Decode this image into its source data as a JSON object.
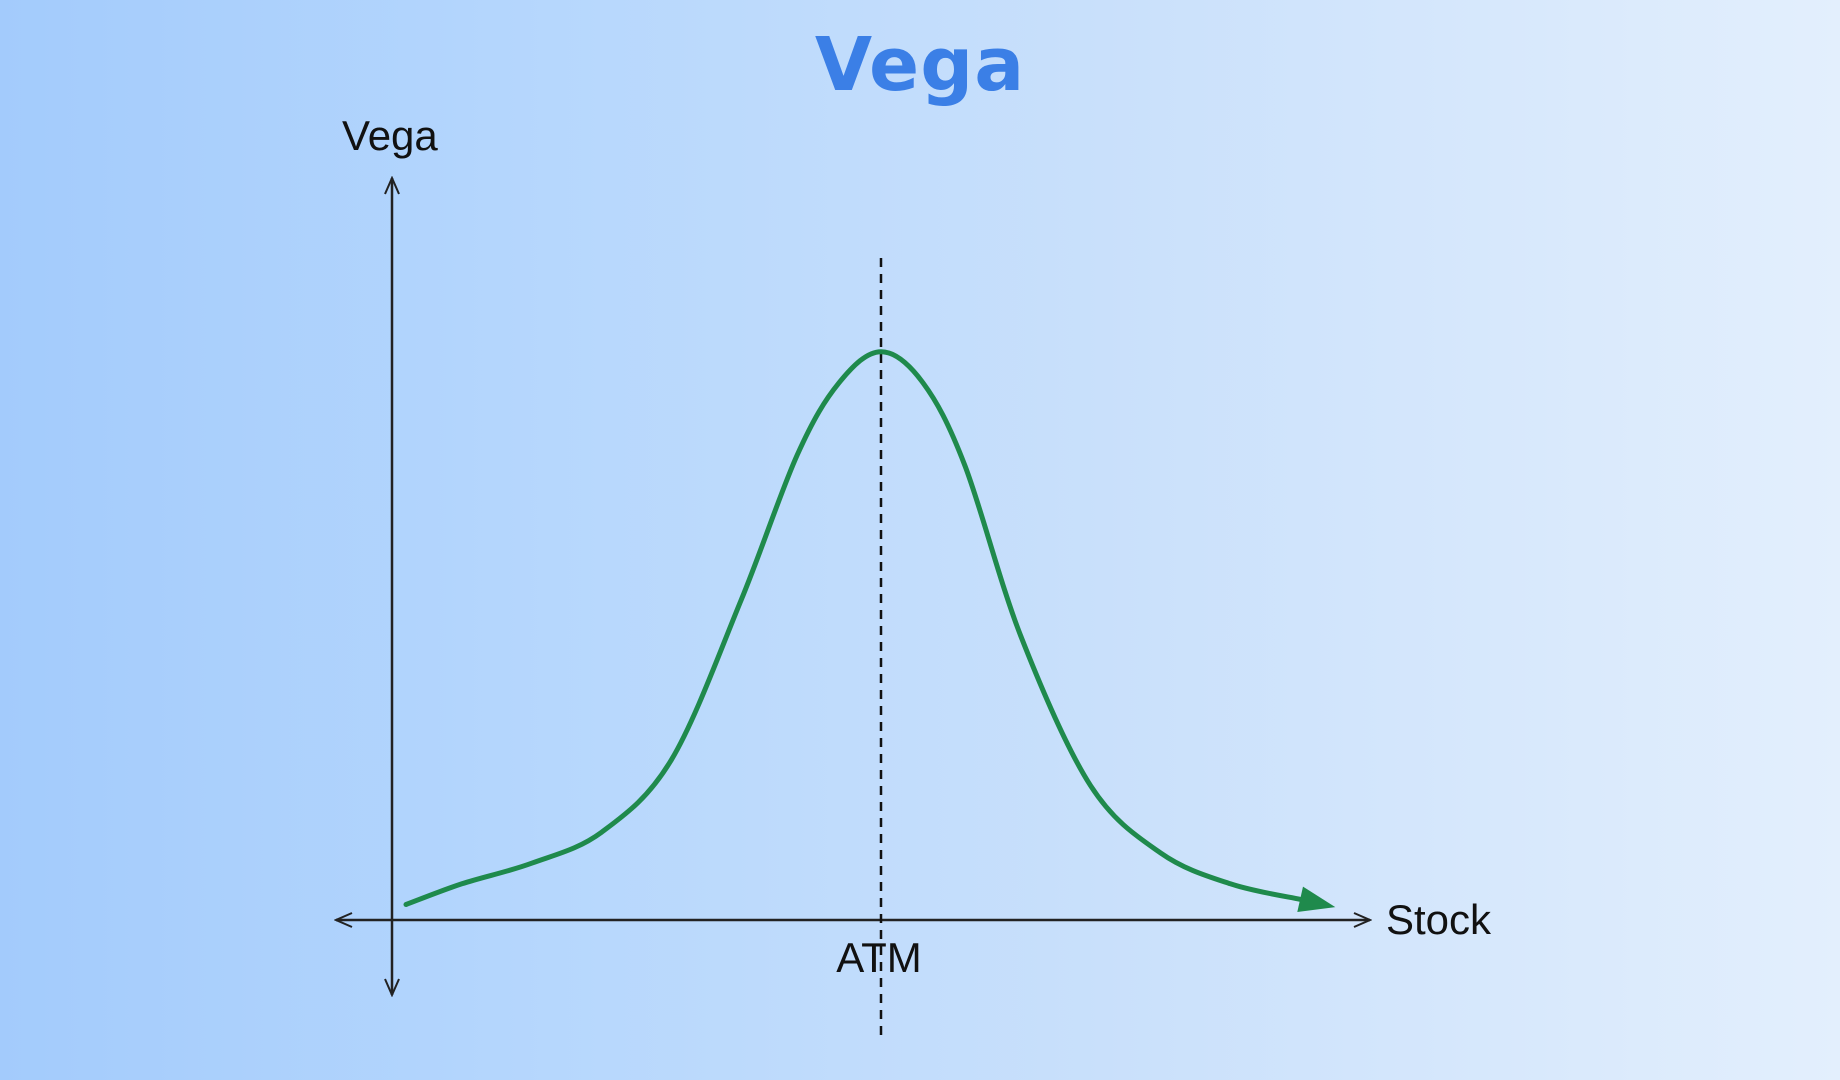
{
  "title": "Vega",
  "chart_data": {
    "type": "line",
    "title": "Vega",
    "ylabel": "Vega",
    "xlabel": "Stock",
    "annotations": [
      {
        "text": "ATM",
        "x": 0,
        "style": "dashed-vertical-line"
      }
    ],
    "xlim": [
      -3.5,
      3.5
    ],
    "ylim": [
      0,
      1.2
    ],
    "series": [
      {
        "color": "#1f8a4c",
        "arrow_end": true,
        "x": [
          -3.4,
          -3.0,
          -2.5,
          -2.0,
          -1.5,
          -1.0,
          -0.6,
          -0.3,
          0.0,
          0.3,
          0.6,
          1.0,
          1.5,
          2.0,
          2.5,
          3.0,
          3.0
        ],
        "y": [
          0.03,
          0.07,
          0.11,
          0.17,
          0.31,
          0.62,
          0.9,
          1.04,
          1.1,
          1.04,
          0.88,
          0.55,
          0.26,
          0.13,
          0.07,
          0.04,
          0.04
        ]
      }
    ],
    "grid": false,
    "legend": "none"
  }
}
